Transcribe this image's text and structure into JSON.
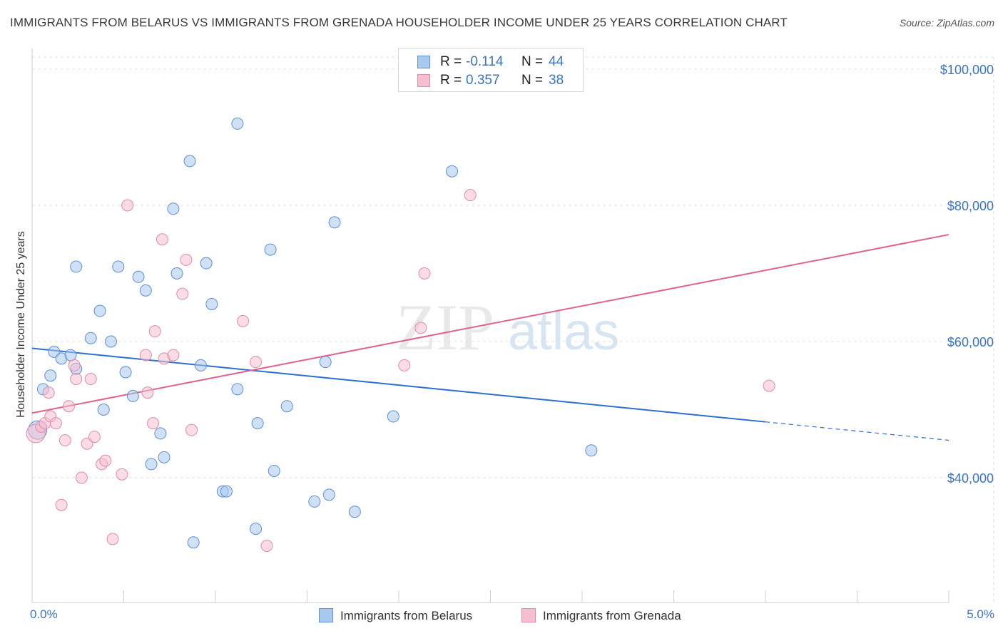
{
  "title": "IMMIGRANTS FROM BELARUS VS IMMIGRANTS FROM GRENADA HOUSEHOLDER INCOME UNDER 25 YEARS CORRELATION CHART",
  "source": "Source: ZipAtlas.com",
  "watermark": {
    "zip": "ZIP",
    "atlas": "atlas"
  },
  "legend": {
    "r_label": "R =",
    "n_label": "N =",
    "rows": [
      {
        "name": "Immigrants from Belarus",
        "r": "-0.114",
        "n": "44"
      },
      {
        "name": "Immigrants from Grenada",
        "r": "0.357",
        "n": "38"
      }
    ]
  },
  "colors": {
    "blue_fill": "#aac9ef",
    "blue_stroke": "#5b8fd6",
    "blue_line": "#2c6fcf",
    "pink_fill": "#f6bfd0",
    "pink_stroke": "#e38aa8",
    "pink_line": "#e0628e",
    "tick_text": "#3b73c6",
    "grid": "#e2e2e2"
  },
  "chart_data": {
    "type": "scatter",
    "title": "IMMIGRANTS FROM BELARUS VS IMMIGRANTS FROM GRENADA HOUSEHOLDER INCOME UNDER 25 YEARS CORRELATION CHART",
    "xlabel": "",
    "ylabel": "Householder Income Under 25 years",
    "xlim": [
      0,
      5
    ],
    "ylim": [
      20000,
      102000
    ],
    "x_tick_labels": [
      "0.0%",
      "5.0%"
    ],
    "y_ticks": [
      40000,
      60000,
      80000,
      100000
    ],
    "y_tick_labels": [
      "$40,000",
      "$60,000",
      "$80,000",
      "$100,000"
    ],
    "grid": true,
    "series": [
      {
        "name": "Immigrants from Belarus",
        "color": "#aac9ef",
        "points": [
          [
            0.03,
            47000
          ],
          [
            0.06,
            53000
          ],
          [
            0.1,
            55000
          ],
          [
            0.12,
            58500
          ],
          [
            0.16,
            57500
          ],
          [
            0.21,
            58000
          ],
          [
            0.24,
            56000
          ],
          [
            0.24,
            71000
          ],
          [
            0.32,
            60500
          ],
          [
            0.37,
            64500
          ],
          [
            0.39,
            50000
          ],
          [
            0.43,
            60000
          ],
          [
            0.47,
            71000
          ],
          [
            0.51,
            55500
          ],
          [
            0.55,
            52000
          ],
          [
            0.58,
            69500
          ],
          [
            0.62,
            67500
          ],
          [
            0.65,
            42000
          ],
          [
            0.7,
            46500
          ],
          [
            0.72,
            43000
          ],
          [
            0.77,
            79500
          ],
          [
            0.79,
            70000
          ],
          [
            0.86,
            86500
          ],
          [
            0.88,
            30500
          ],
          [
            0.92,
            56500
          ],
          [
            0.95,
            71500
          ],
          [
            0.98,
            65500
          ],
          [
            1.04,
            38000
          ],
          [
            1.06,
            38000
          ],
          [
            1.12,
            53000
          ],
          [
            1.12,
            92000
          ],
          [
            1.22,
            32500
          ],
          [
            1.23,
            48000
          ],
          [
            1.3,
            73500
          ],
          [
            1.32,
            41000
          ],
          [
            1.39,
            50500
          ],
          [
            1.54,
            36500
          ],
          [
            1.6,
            57000
          ],
          [
            1.62,
            37500
          ],
          [
            1.65,
            77500
          ],
          [
            1.76,
            35000
          ],
          [
            1.97,
            49000
          ],
          [
            2.29,
            85000
          ],
          [
            3.05,
            44000
          ]
        ]
      },
      {
        "name": "Immigrants from Grenada",
        "color": "#f6bfd0",
        "points": [
          [
            0.02,
            46500
          ],
          [
            0.05,
            47500
          ],
          [
            0.07,
            48000
          ],
          [
            0.09,
            52500
          ],
          [
            0.1,
            49000
          ],
          [
            0.13,
            48000
          ],
          [
            0.16,
            36000
          ],
          [
            0.18,
            45500
          ],
          [
            0.2,
            50500
          ],
          [
            0.23,
            56500
          ],
          [
            0.24,
            54500
          ],
          [
            0.27,
            40000
          ],
          [
            0.3,
            45000
          ],
          [
            0.32,
            54500
          ],
          [
            0.34,
            46000
          ],
          [
            0.38,
            42000
          ],
          [
            0.4,
            42500
          ],
          [
            0.44,
            31000
          ],
          [
            0.49,
            40500
          ],
          [
            0.52,
            80000
          ],
          [
            0.62,
            58000
          ],
          [
            0.63,
            52500
          ],
          [
            0.66,
            48000
          ],
          [
            0.67,
            61500
          ],
          [
            0.71,
            75000
          ],
          [
            0.72,
            57500
          ],
          [
            0.77,
            58000
          ],
          [
            0.82,
            67000
          ],
          [
            0.84,
            72000
          ],
          [
            0.87,
            47000
          ],
          [
            1.15,
            63000
          ],
          [
            1.22,
            57000
          ],
          [
            1.28,
            30000
          ],
          [
            2.03,
            56500
          ],
          [
            2.12,
            62000
          ],
          [
            2.14,
            70000
          ],
          [
            2.39,
            81500
          ],
          [
            4.02,
            53500
          ]
        ]
      }
    ],
    "trendlines": [
      {
        "series": "Immigrants from Belarus",
        "x": [
          0,
          4.0
        ],
        "y": [
          59000,
          48200
        ],
        "dashed_extension_to_x": 5.0,
        "dashed_extension_y": 45500
      },
      {
        "series": "Immigrants from Grenada",
        "x": [
          0,
          5.0
        ],
        "y": [
          49500,
          75700
        ]
      }
    ]
  }
}
